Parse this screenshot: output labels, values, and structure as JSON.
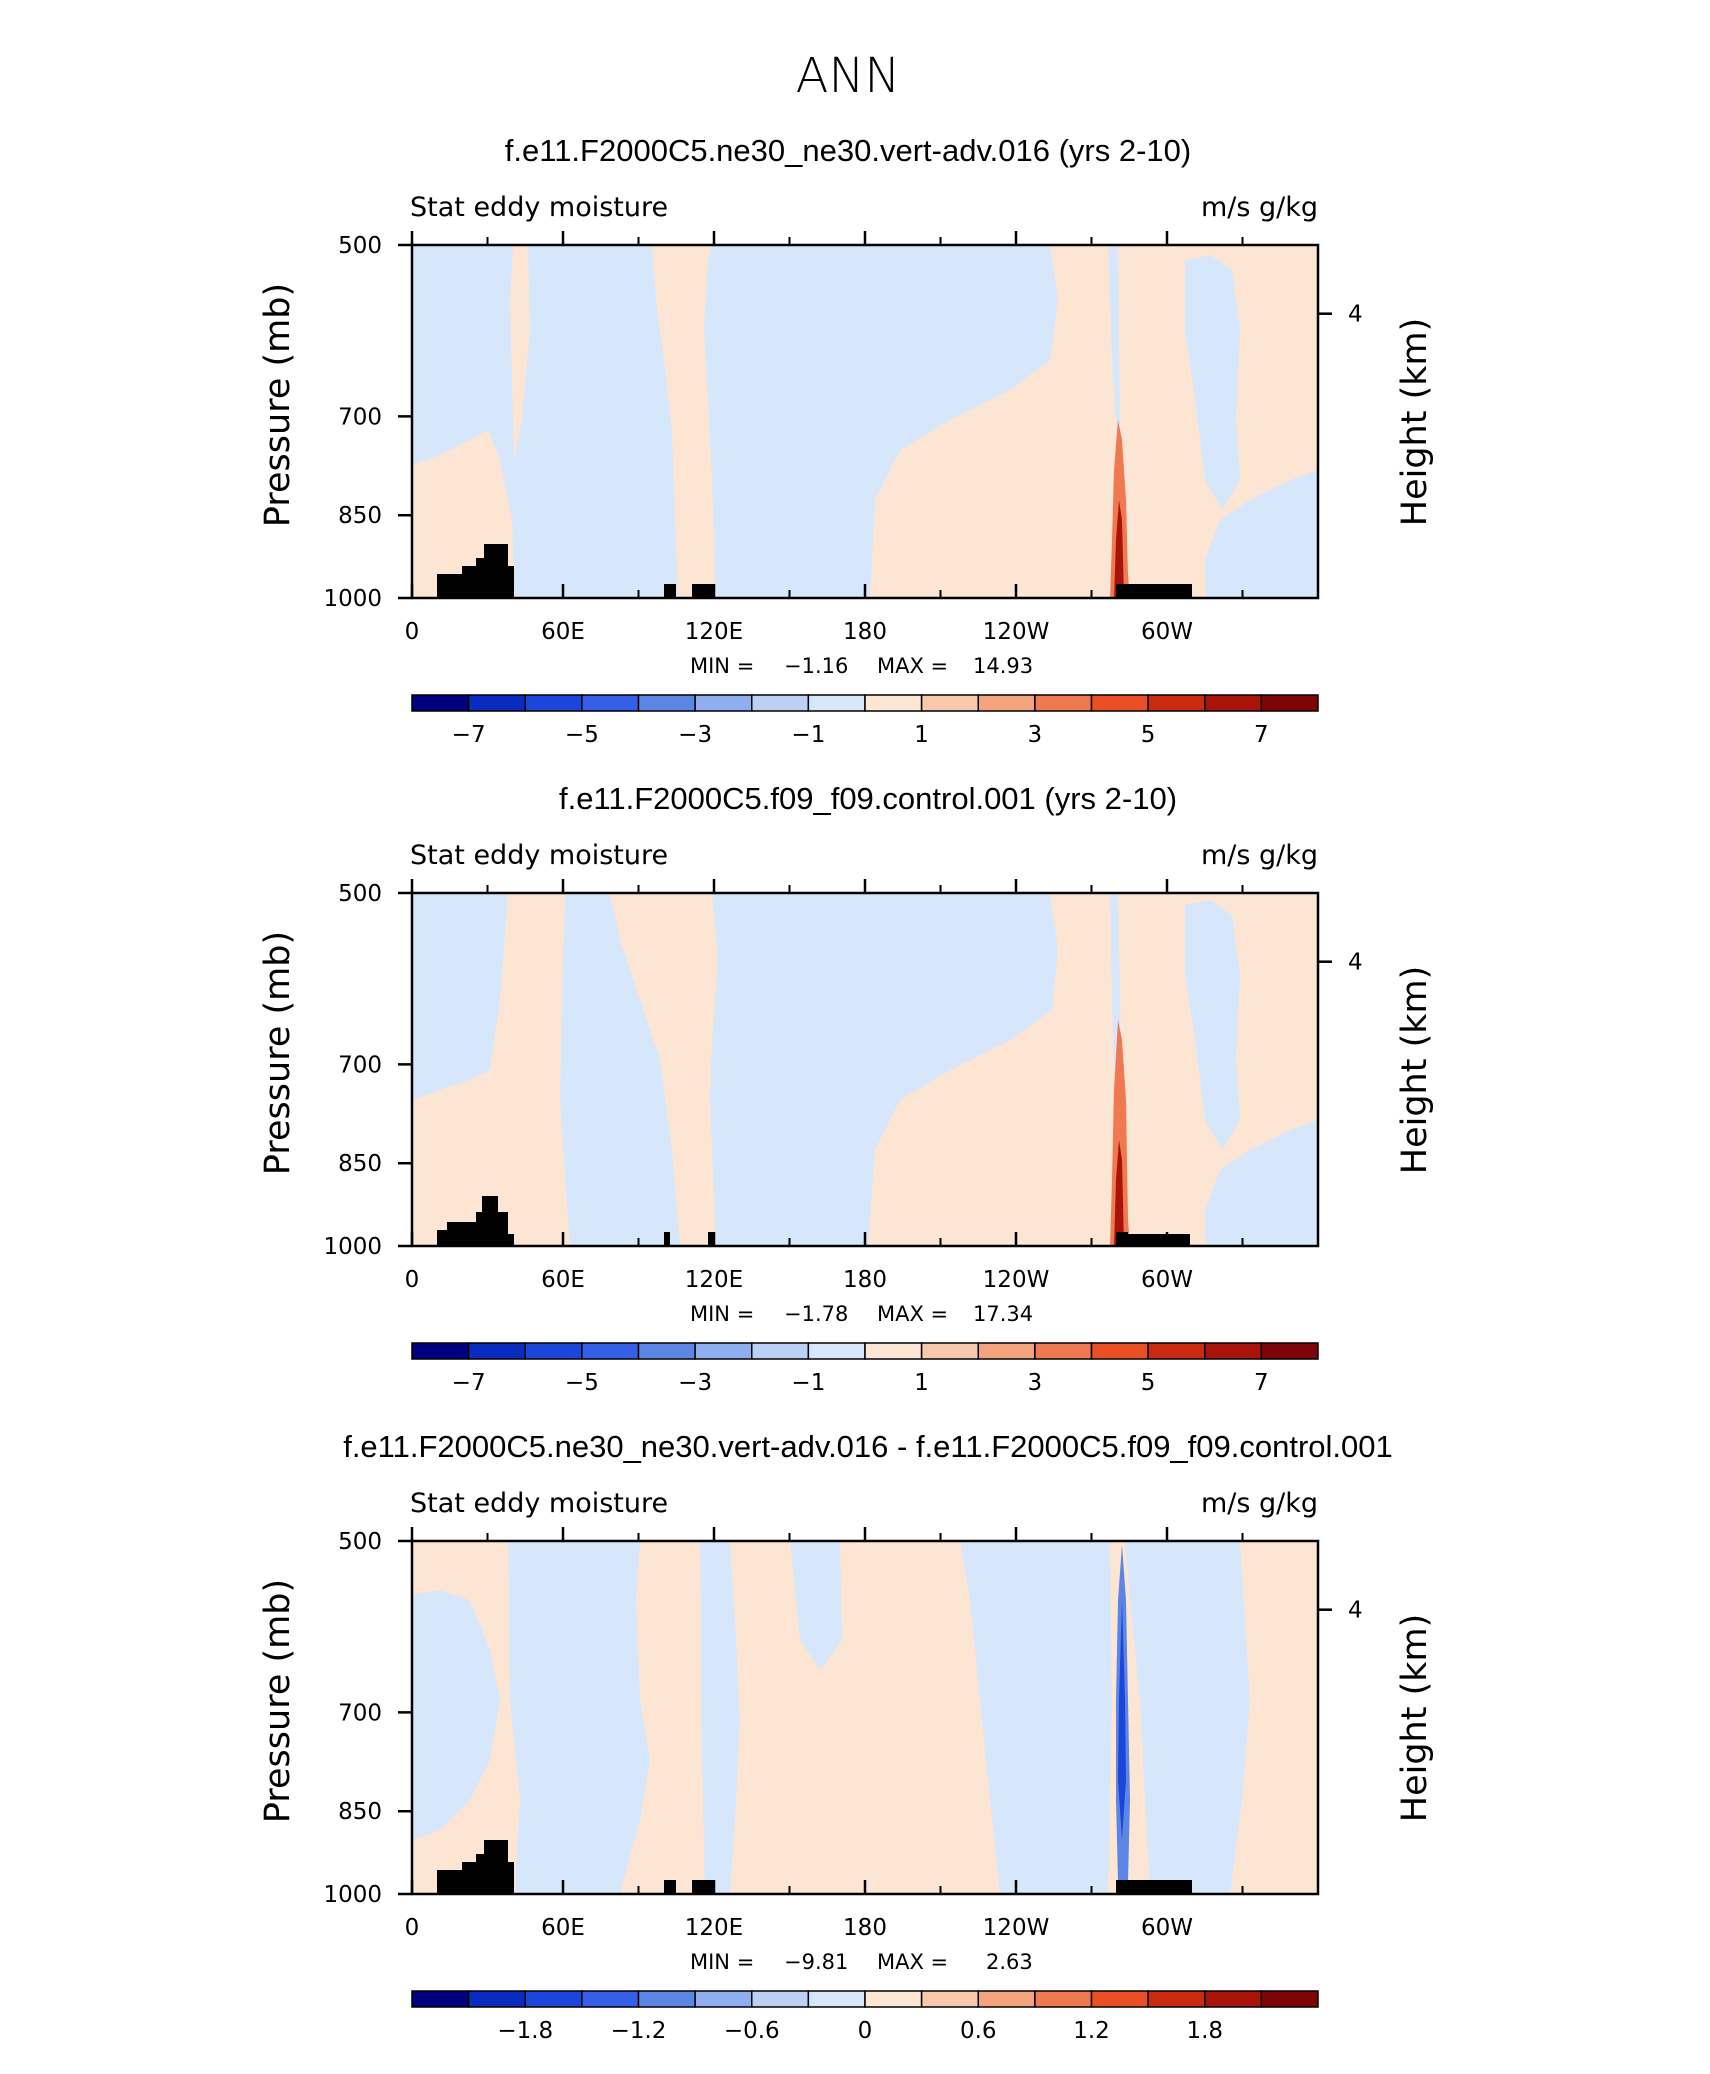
{
  "figure": {
    "title": "ANN"
  },
  "chart_data": [
    {
      "type": "heatmap",
      "title": "f.e11.F2000C5.ne30_ne30.vert-adv.016 (yrs 2-10)",
      "left_label": "Stat eddy moisture",
      "right_label": "m/s g/kg",
      "ylabel": "Pressure (mb)",
      "ylabel_right": "Height (km)",
      "x_ticks": [
        "0",
        "60E",
        "120E",
        "180",
        "120W",
        "60W"
      ],
      "x_tick_values": [
        0,
        60,
        120,
        180,
        240,
        300
      ],
      "xlim": [
        0,
        360
      ],
      "y_ticks": [
        "500",
        "700",
        "850",
        "1000"
      ],
      "y_tick_values": [
        500,
        700,
        850,
        1000
      ],
      "ylim": [
        1000,
        500
      ],
      "right_ticks": [
        "4"
      ],
      "right_tick_values": [
        4
      ],
      "min_label": "MIN =",
      "min_value": "−1.16",
      "max_label": "MAX =",
      "max_value": "14.93",
      "colorbar_labels": [
        "−7",
        "−5",
        "−3",
        "−1",
        "1",
        "3",
        "5",
        "7"
      ],
      "colorbar_levels": [
        -8,
        -7,
        -6,
        -5,
        -4,
        -3,
        -2,
        -1,
        0,
        1,
        2,
        3,
        4,
        5,
        6,
        7,
        8
      ]
    },
    {
      "type": "heatmap",
      "title": "f.e11.F2000C5.f09_f09.control.001 (yrs 2-10)",
      "left_label": "Stat eddy moisture",
      "right_label": "m/s g/kg",
      "ylabel": "Pressure (mb)",
      "ylabel_right": "Height (km)",
      "x_ticks": [
        "0",
        "60E",
        "120E",
        "180",
        "120W",
        "60W"
      ],
      "x_tick_values": [
        0,
        60,
        120,
        180,
        240,
        300
      ],
      "xlim": [
        0,
        360
      ],
      "y_ticks": [
        "500",
        "700",
        "850",
        "1000"
      ],
      "y_tick_values": [
        500,
        700,
        850,
        1000
      ],
      "ylim": [
        1000,
        500
      ],
      "right_ticks": [
        "4"
      ],
      "right_tick_values": [
        4
      ],
      "min_label": "MIN =",
      "min_value": "−1.78",
      "max_label": "MAX =",
      "max_value": "17.34",
      "colorbar_labels": [
        "−7",
        "−5",
        "−3",
        "−1",
        "1",
        "3",
        "5",
        "7"
      ],
      "colorbar_levels": [
        -8,
        -7,
        -6,
        -5,
        -4,
        -3,
        -2,
        -1,
        0,
        1,
        2,
        3,
        4,
        5,
        6,
        7,
        8
      ]
    },
    {
      "type": "heatmap",
      "title": "f.e11.F2000C5.ne30_ne30.vert-adv.016 - f.e11.F2000C5.f09_f09.control.001",
      "left_label": "Stat eddy moisture",
      "right_label": "m/s g/kg",
      "ylabel": "Pressure (mb)",
      "ylabel_right": "Height (km)",
      "x_ticks": [
        "0",
        "60E",
        "120E",
        "180",
        "120W",
        "60W"
      ],
      "x_tick_values": [
        0,
        60,
        120,
        180,
        240,
        300
      ],
      "xlim": [
        0,
        360
      ],
      "y_ticks": [
        "500",
        "700",
        "850",
        "1000"
      ],
      "y_tick_values": [
        500,
        700,
        850,
        1000
      ],
      "ylim": [
        1000,
        500
      ],
      "right_ticks": [
        "4"
      ],
      "right_tick_values": [
        4
      ],
      "min_label": "MIN =",
      "min_value": "−9.81",
      "max_label": "MAX =",
      "max_value": "2.63",
      "colorbar_labels": [
        "−1.8",
        "−1.2",
        "−0.6",
        "0",
        "0.6",
        "1.2",
        "1.8"
      ],
      "colorbar_levels": [
        -2.4,
        -2.1,
        -1.8,
        -1.5,
        -1.2,
        -0.9,
        -0.6,
        -0.3,
        0,
        0.3,
        0.6,
        0.9,
        1.2,
        1.5,
        1.8,
        2.1,
        2.4
      ]
    }
  ],
  "colors": {
    "palette": [
      "#00007f",
      "#0a2bbf",
      "#1b46d9",
      "#3560e6",
      "#5b86e6",
      "#8eaef0",
      "#bcd0f5",
      "#d6e7fb",
      "#fde5d3",
      "#f9c9ae",
      "#f4a37f",
      "#ef7a52",
      "#e94e25",
      "#cc2a0e",
      "#a8130a",
      "#7d0508"
    ],
    "light_positive": "#fde5d3",
    "light_negative": "#d6e7fb",
    "topography": "#000000"
  }
}
